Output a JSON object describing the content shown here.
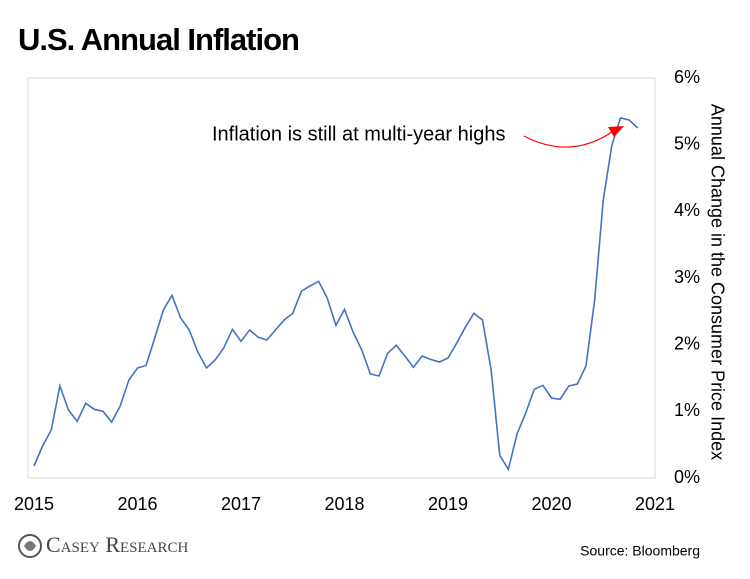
{
  "chart_data": {
    "type": "line",
    "title": "U.S. Annual Inflation",
    "y_label": "Annual Change in the Consumer Price Index",
    "annotation": "Inflation is still at multi-year highs",
    "source": "Source: Bloomberg",
    "brand": "Casey Research",
    "x": [
      2015,
      2015.083,
      2015.167,
      2015.25,
      2015.333,
      2015.417,
      2015.5,
      2015.583,
      2015.667,
      2015.75,
      2015.833,
      2015.917,
      2016,
      2016.083,
      2016.167,
      2016.25,
      2016.333,
      2016.417,
      2016.5,
      2016.583,
      2016.667,
      2016.75,
      2016.833,
      2016.917,
      2017,
      2017.083,
      2017.167,
      2017.25,
      2017.333,
      2017.417,
      2017.5,
      2017.583,
      2017.667,
      2017.75,
      2017.833,
      2017.917,
      2018,
      2018.083,
      2018.167,
      2018.25,
      2018.333,
      2018.417,
      2018.5,
      2018.583,
      2018.667,
      2018.75,
      2018.833,
      2018.917,
      2019,
      2019.083,
      2019.167,
      2019.25,
      2019.333,
      2019.417,
      2019.5,
      2019.583,
      2019.667,
      2019.75,
      2019.833,
      2019.917,
      2020,
      2020.083,
      2020.167,
      2020.25,
      2020.333,
      2020.417,
      2020.5,
      2020.583,
      2020.667,
      2020.75,
      2020.833
    ],
    "series": [
      {
        "name": "CPI",
        "color": "#4472c4",
        "values": [
          0.18,
          0.48,
          0.72,
          1.38,
          1.02,
          0.85,
          1.12,
          1.03,
          1.0,
          0.84,
          1.08,
          1.47,
          1.65,
          1.69,
          2.1,
          2.52,
          2.74,
          2.4,
          2.22,
          1.89,
          1.65,
          1.77,
          1.95,
          2.23,
          2.05,
          2.22,
          2.11,
          2.07,
          2.22,
          2.37,
          2.47,
          2.8,
          2.88,
          2.95,
          2.7,
          2.29,
          2.53,
          2.19,
          1.92,
          1.56,
          1.53,
          1.87,
          1.99,
          1.83,
          1.66,
          1.83,
          1.78,
          1.74,
          1.8,
          2.02,
          2.26,
          2.47,
          2.37,
          1.62,
          0.34,
          0.13,
          0.66,
          0.97,
          1.33,
          1.39,
          1.2,
          1.18,
          1.38,
          1.41,
          1.68,
          2.67,
          4.17,
          4.99,
          5.4,
          5.37,
          5.25
        ]
      }
    ],
    "xlim": [
      2015,
      2021
    ],
    "xticks": [
      2015,
      2016,
      2017,
      2018,
      2019,
      2020,
      2021
    ],
    "ylim": [
      0,
      6
    ],
    "yticks": [
      {
        "value": 0,
        "label": "0%"
      },
      {
        "value": 1,
        "label": "1%"
      },
      {
        "value": 2,
        "label": "2%"
      },
      {
        "value": 3,
        "label": "3%"
      },
      {
        "value": 4,
        "label": "4%"
      },
      {
        "value": 5,
        "label": "5%"
      },
      {
        "value": 6,
        "label": "6%"
      }
    ],
    "grid": false,
    "annotation_color": "#ff0000"
  }
}
